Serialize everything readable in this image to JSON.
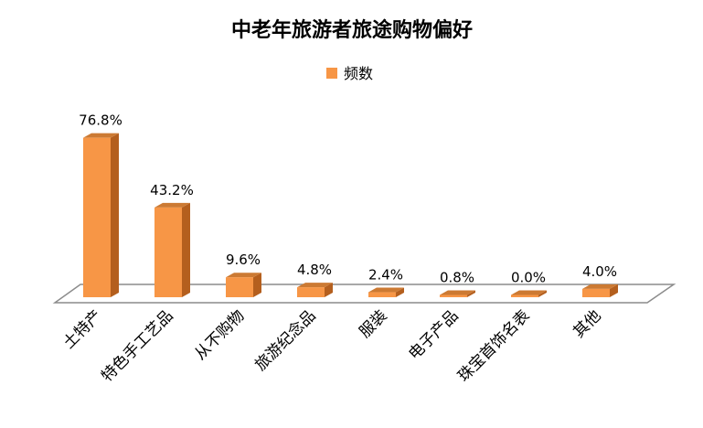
{
  "chart_data": {
    "type": "bar",
    "title": "中老年旅游者旅途购物偏好",
    "legend": {
      "label": "频数",
      "placement": "top"
    },
    "categories": [
      "土特产",
      "特色手工艺品",
      "从不购物",
      "旅游纪念品",
      "服装",
      "电子产品",
      "珠宝首饰名表",
      "其他"
    ],
    "series": [
      {
        "name": "频数",
        "values": [
          76.8,
          43.2,
          9.6,
          4.8,
          2.4,
          0.8,
          0.0,
          4.0
        ]
      }
    ],
    "data_labels": [
      "76.8%",
      "43.2%",
      "9.6%",
      "4.8%",
      "2.4%",
      "0.8%",
      "0.0%",
      "4.0%"
    ],
    "unit": "%",
    "grid": false,
    "style": "3d-column",
    "colors": {
      "bar_front": "#F79646",
      "bar_side": "#B45F1E",
      "bar_top": "#CC7A33",
      "floor": "#8C8C8C"
    }
  }
}
